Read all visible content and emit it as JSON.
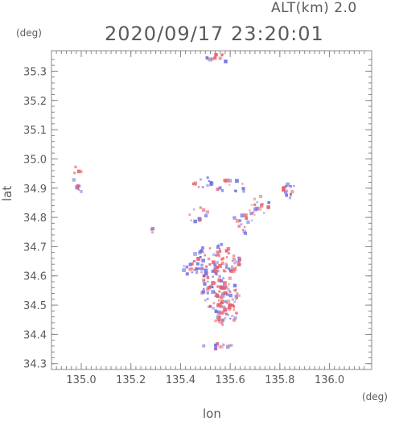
{
  "header": {
    "alt_label": "ALT(km)  2.0",
    "timestamp": "2020/09/17  23:20:01"
  },
  "units": {
    "lat_unit": "(deg)",
    "lon_unit": "(deg)"
  },
  "axes": {
    "xlabel": "lon",
    "ylabel": "lat"
  },
  "chart_data": {
    "type": "heatmap",
    "xlabel": "lon",
    "ylabel": "lat",
    "xlim": [
      134.88,
      136.17
    ],
    "ylim": [
      34.28,
      35.37
    ],
    "xticks": [
      "135.0",
      "135.2",
      "135.4",
      "135.6",
      "135.8",
      "136.0"
    ],
    "yticks": [
      "34.3",
      "34.4",
      "34.5",
      "34.6",
      "34.7",
      "34.8",
      "34.9",
      "35.0",
      "35.1",
      "35.2",
      "35.3"
    ],
    "grid": false,
    "colors": {
      "positive": "#e8606a",
      "negative": "#6b6ee0",
      "axis": "#888888"
    },
    "clusters": [
      {
        "lon": 134.99,
        "lat": 34.93,
        "rlon": 0.02,
        "rlat": 0.06,
        "n": 10,
        "bias": -1
      },
      {
        "lon": 135.29,
        "lat": 34.755,
        "rlon": 0.015,
        "rlat": 0.01,
        "n": 4,
        "bias": 0
      },
      {
        "lon": 135.565,
        "lat": 35.345,
        "rlon": 0.06,
        "rlat": 0.015,
        "n": 10,
        "bias": 1
      },
      {
        "lon": 135.5,
        "lat": 34.92,
        "rlon": 0.05,
        "rlat": 0.02,
        "n": 12,
        "bias": 0
      },
      {
        "lon": 135.6,
        "lat": 34.9,
        "rlon": 0.06,
        "rlat": 0.03,
        "n": 14,
        "bias": 0
      },
      {
        "lon": 135.47,
        "lat": 34.81,
        "rlon": 0.04,
        "rlat": 0.03,
        "n": 12,
        "bias": 0
      },
      {
        "lon": 135.71,
        "lat": 34.84,
        "rlon": 0.05,
        "rlat": 0.04,
        "n": 18,
        "bias": 1
      },
      {
        "lon": 135.84,
        "lat": 34.89,
        "rlon": 0.03,
        "rlat": 0.025,
        "n": 14,
        "bias": 0
      },
      {
        "lon": 135.65,
        "lat": 34.78,
        "rlon": 0.04,
        "rlat": 0.04,
        "n": 14,
        "bias": 0
      },
      {
        "lon": 135.54,
        "lat": 34.65,
        "rlon": 0.1,
        "rlat": 0.06,
        "n": 90,
        "bias": 0
      },
      {
        "lon": 135.56,
        "lat": 34.55,
        "rlon": 0.08,
        "rlat": 0.07,
        "n": 90,
        "bias": 0
      },
      {
        "lon": 135.58,
        "lat": 34.47,
        "rlon": 0.05,
        "rlat": 0.04,
        "n": 40,
        "bias": 1
      },
      {
        "lon": 135.45,
        "lat": 34.63,
        "rlon": 0.04,
        "rlat": 0.03,
        "n": 14,
        "bias": -1
      },
      {
        "lon": 135.55,
        "lat": 34.36,
        "rlon": 0.06,
        "rlat": 0.01,
        "n": 14,
        "bias": 0
      }
    ]
  }
}
